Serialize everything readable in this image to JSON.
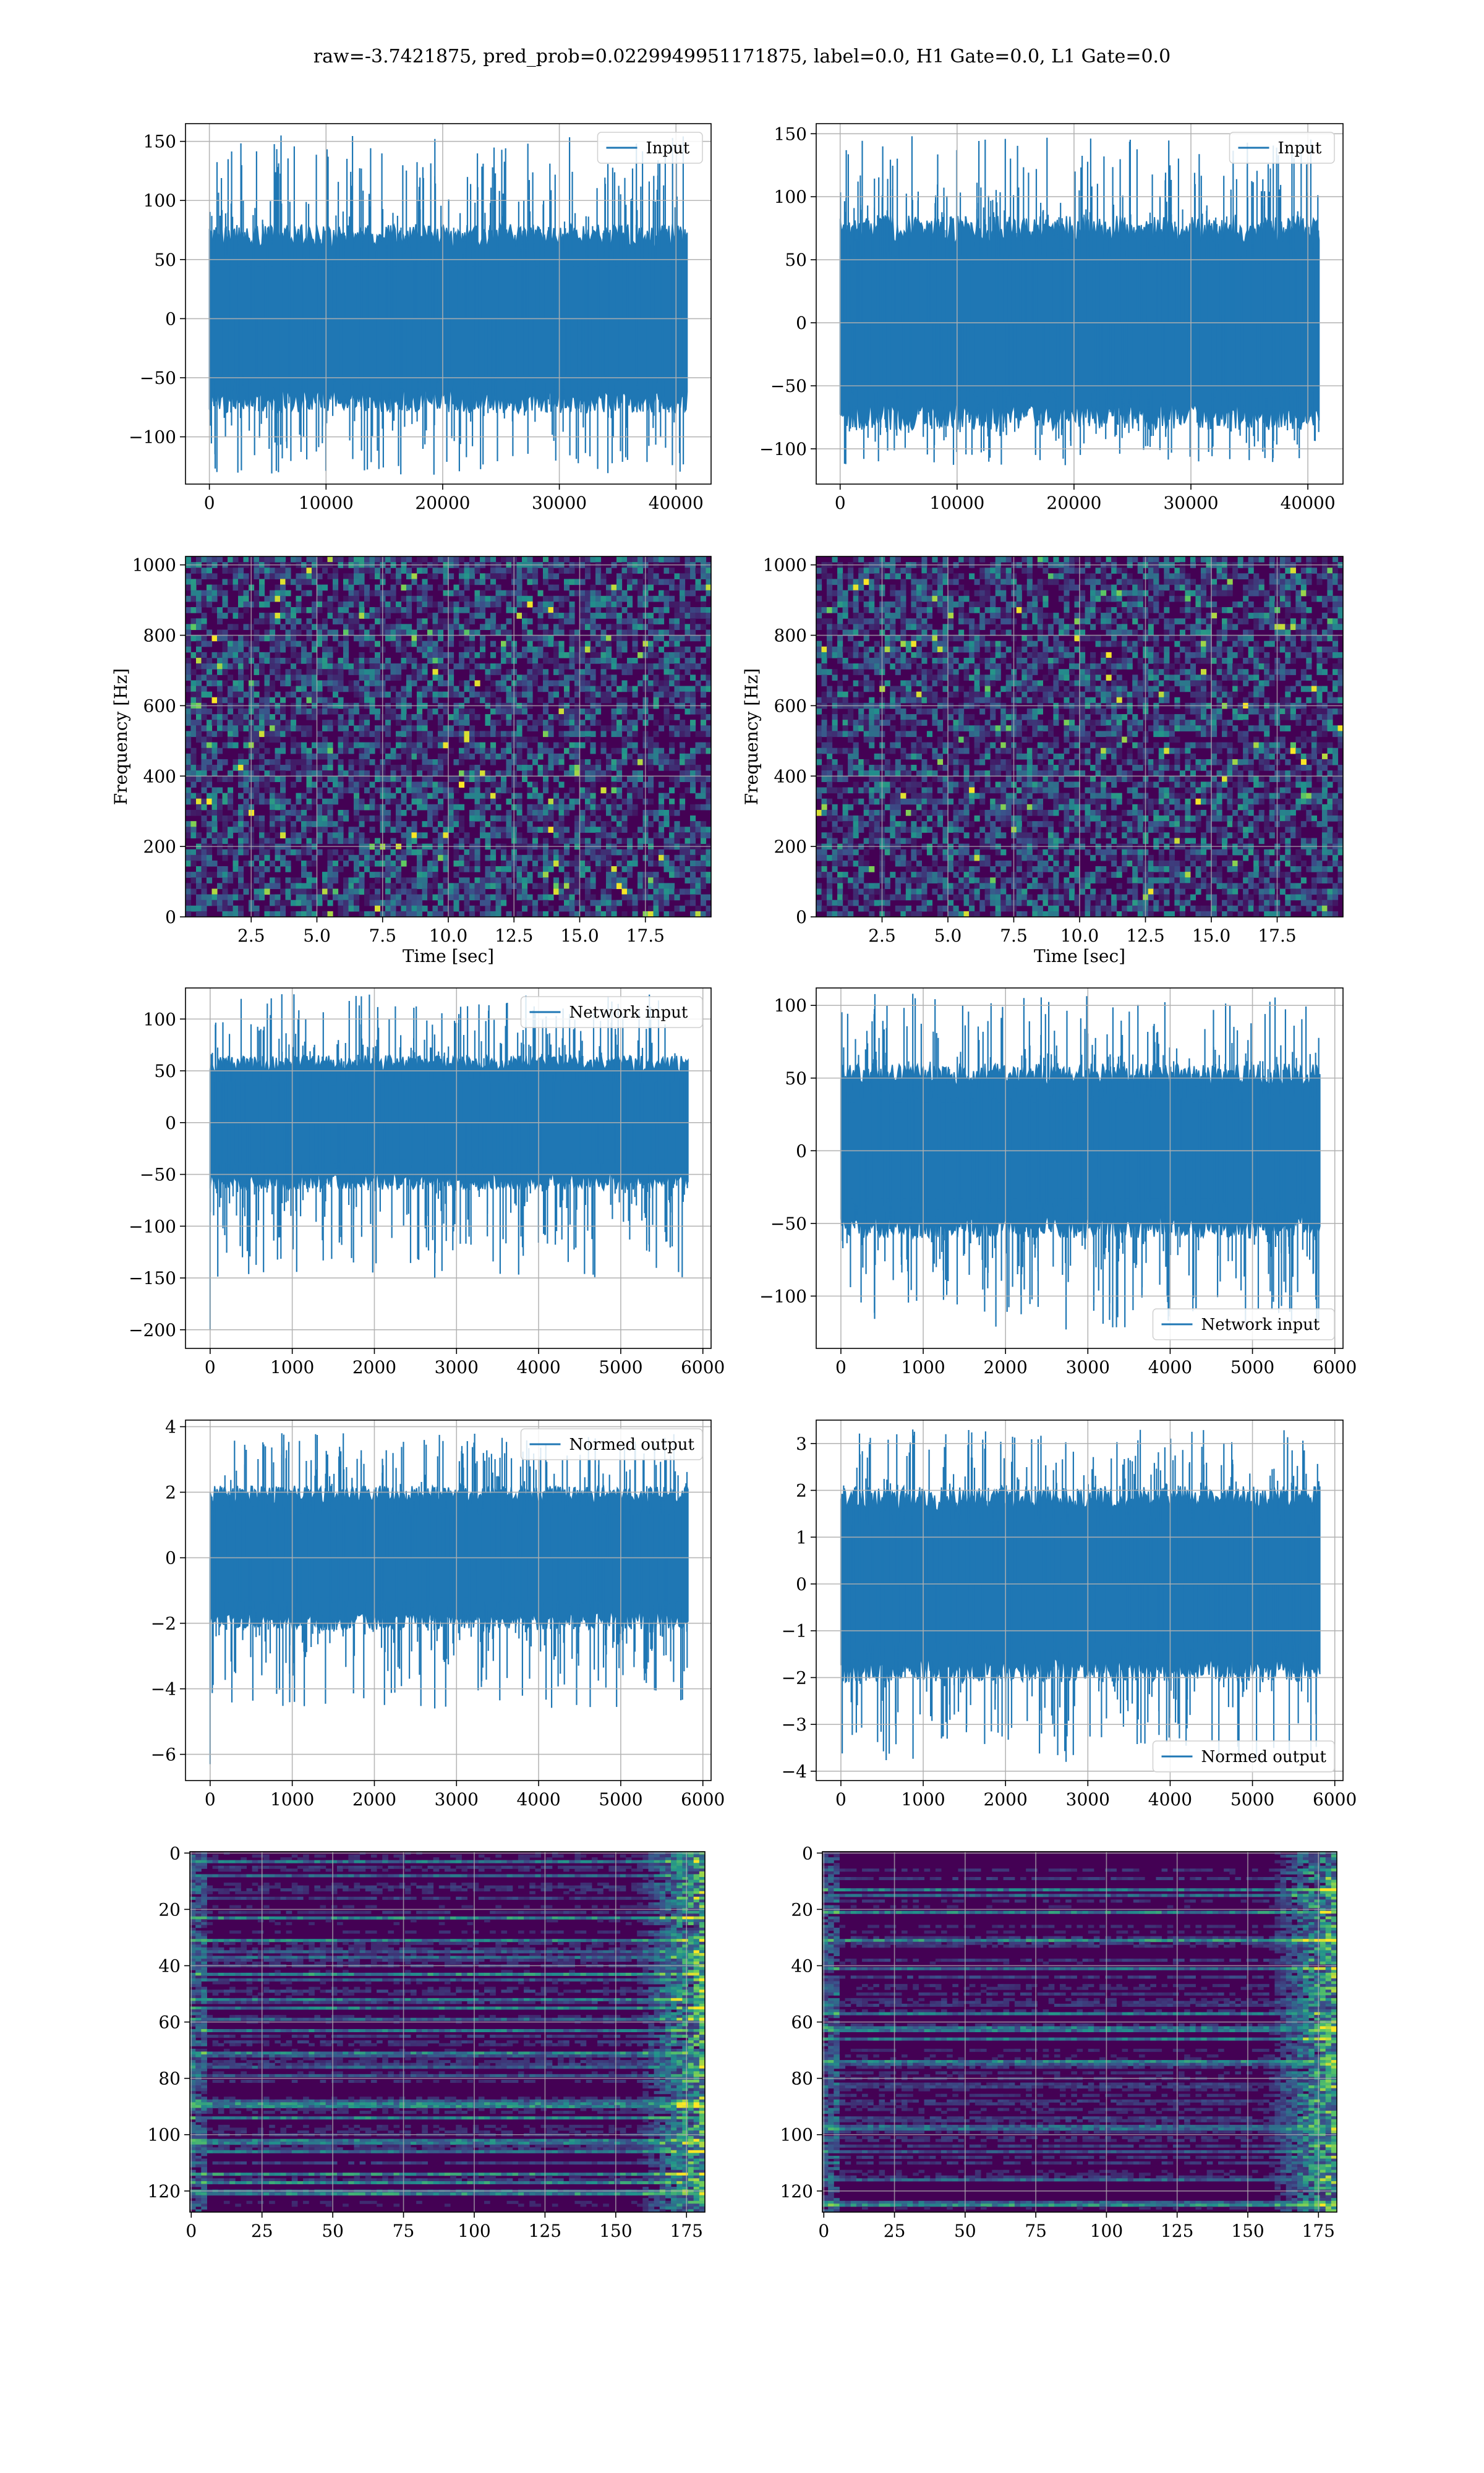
{
  "suptitle": "raw=-3.7421875, pred_prob=0.0229949951171875, label=0.0, H1 Gate=0.0, L1 Gate=0.0",
  "colors": {
    "line": "#1f77b4",
    "grid": "#b0b0b0",
    "viridis": [
      "#440154",
      "#3b528b",
      "#21918c",
      "#5ec962",
      "#fde725"
    ]
  },
  "chart_data": [
    {
      "id": "h1-input",
      "type": "line",
      "signal": "noise",
      "title": "",
      "xlabel": "",
      "ylabel": "",
      "series": [
        {
          "name": "Input",
          "color": "#1f77b4",
          "n_samples": 40960,
          "band_low": -80,
          "band_high": 80,
          "peak_max": 155,
          "peak_min": -132
        }
      ],
      "xlim": [
        -2048,
        43008
      ],
      "ylim": [
        -140,
        165
      ],
      "xticks": [
        0,
        10000,
        20000,
        30000,
        40000
      ],
      "xtick_labels": [
        "0",
        "10000",
        "20000",
        "30000",
        "40000"
      ],
      "yticks": [
        -100,
        -50,
        0,
        50,
        100,
        150
      ],
      "ytick_labels": [
        "−100",
        "−50",
        "0",
        "50",
        "100",
        "150"
      ],
      "legend": {
        "position": "upper right"
      },
      "grid": true
    },
    {
      "id": "l1-input",
      "type": "line",
      "signal": "noise",
      "title": "",
      "xlabel": "",
      "ylabel": "",
      "series": [
        {
          "name": "Input",
          "color": "#1f77b4",
          "n_samples": 40960,
          "band_low": -85,
          "band_high": 85,
          "peak_max": 148,
          "peak_min": -113
        }
      ],
      "xlim": [
        -2048,
        43008
      ],
      "ylim": [
        -128,
        158
      ],
      "xticks": [
        0,
        10000,
        20000,
        30000,
        40000
      ],
      "xtick_labels": [
        "0",
        "10000",
        "20000",
        "30000",
        "40000"
      ],
      "yticks": [
        -100,
        -50,
        0,
        50,
        100,
        150
      ],
      "ytick_labels": [
        "−100",
        "−50",
        "0",
        "50",
        "100",
        "150"
      ],
      "legend": {
        "position": "upper right"
      },
      "grid": true
    },
    {
      "id": "h1-spectrogram",
      "type": "heatmap",
      "style": "spectrogram",
      "title": "",
      "xlabel": "Time [sec]",
      "ylabel": "Frequency [Hz]",
      "xlim": [
        0,
        20
      ],
      "ylim": [
        0,
        1024
      ],
      "xticks": [
        2.5,
        5.0,
        7.5,
        10.0,
        12.5,
        15.0,
        17.5
      ],
      "xtick_labels": [
        "2.5",
        "5.0",
        "7.5",
        "10.0",
        "12.5",
        "15.0",
        "17.5"
      ],
      "yticks": [
        0,
        200,
        400,
        600,
        800,
        1000
      ],
      "ytick_labels": [
        "0",
        "200",
        "400",
        "600",
        "800",
        "1000"
      ],
      "grid": true,
      "colormap": "viridis"
    },
    {
      "id": "l1-spectrogram",
      "type": "heatmap",
      "style": "spectrogram",
      "title": "",
      "xlabel": "Time [sec]",
      "ylabel": "Frequency [Hz]",
      "xlim": [
        0,
        20
      ],
      "ylim": [
        0,
        1024
      ],
      "xticks": [
        2.5,
        5.0,
        7.5,
        10.0,
        12.5,
        15.0,
        17.5
      ],
      "xtick_labels": [
        "2.5",
        "5.0",
        "7.5",
        "10.0",
        "12.5",
        "15.0",
        "17.5"
      ],
      "yticks": [
        0,
        200,
        400,
        600,
        800,
        1000
      ],
      "ytick_labels": [
        "0",
        "200",
        "400",
        "600",
        "800",
        "1000"
      ],
      "grid": true,
      "colormap": "viridis"
    },
    {
      "id": "h1-network-input",
      "type": "line",
      "signal": "noise",
      "title": "",
      "xlabel": "",
      "ylabel": "",
      "series": [
        {
          "name": "Network input",
          "color": "#1f77b4",
          "n_samples": 5820,
          "band_low": -65,
          "band_high": 65,
          "peak_max": 124,
          "peak_min": -150,
          "first_sample": -200
        }
      ],
      "xlim": [
        -300,
        6100
      ],
      "ylim": [
        -218,
        130
      ],
      "xticks": [
        0,
        1000,
        2000,
        3000,
        4000,
        5000,
        6000
      ],
      "xtick_labels": [
        "0",
        "1000",
        "2000",
        "3000",
        "4000",
        "5000",
        "6000"
      ],
      "yticks": [
        -200,
        -150,
        -100,
        -50,
        0,
        50,
        100
      ],
      "ytick_labels": [
        "−200",
        "−150",
        "−100",
        "−50",
        "0",
        "50",
        "100"
      ],
      "legend": {
        "position": "upper right"
      },
      "grid": true
    },
    {
      "id": "l1-network-input",
      "type": "line",
      "signal": "noise",
      "title": "",
      "xlabel": "",
      "ylabel": "",
      "series": [
        {
          "name": "Network input",
          "color": "#1f77b4",
          "n_samples": 5820,
          "band_low": -60,
          "band_high": 60,
          "peak_max": 108,
          "peak_min": -123
        }
      ],
      "xlim": [
        -300,
        6100
      ],
      "ylim": [
        -136,
        112
      ],
      "xticks": [
        0,
        1000,
        2000,
        3000,
        4000,
        5000,
        6000
      ],
      "xtick_labels": [
        "0",
        "1000",
        "2000",
        "3000",
        "4000",
        "5000",
        "6000"
      ],
      "yticks": [
        -100,
        -50,
        0,
        50,
        100
      ],
      "ytick_labels": [
        "−100",
        "−50",
        "0",
        "50",
        "100"
      ],
      "legend": {
        "position": "lower right"
      },
      "grid": true
    },
    {
      "id": "h1-normed-output",
      "type": "line",
      "signal": "noise",
      "title": "",
      "xlabel": "",
      "ylabel": "",
      "series": [
        {
          "name": "Normed output",
          "color": "#1f77b4",
          "n_samples": 5820,
          "band_low": -2.2,
          "band_high": 2.2,
          "peak_max": 3.8,
          "peak_min": -4.6,
          "first_sample": -6.3
        }
      ],
      "xlim": [
        -300,
        6100
      ],
      "ylim": [
        -6.8,
        4.2
      ],
      "xticks": [
        0,
        1000,
        2000,
        3000,
        4000,
        5000,
        6000
      ],
      "xtick_labels": [
        "0",
        "1000",
        "2000",
        "3000",
        "4000",
        "5000",
        "6000"
      ],
      "yticks": [
        -6,
        -4,
        -2,
        0,
        2,
        4
      ],
      "ytick_labels": [
        "−6",
        "−4",
        "−2",
        "0",
        "2",
        "4"
      ],
      "legend": {
        "position": "upper right"
      },
      "grid": true
    },
    {
      "id": "l1-normed-output",
      "type": "line",
      "signal": "noise",
      "title": "",
      "xlabel": "",
      "ylabel": "",
      "series": [
        {
          "name": "Normed output",
          "color": "#1f77b4",
          "n_samples": 5820,
          "band_low": -2.1,
          "band_high": 2.1,
          "peak_max": 3.3,
          "peak_min": -3.8
        }
      ],
      "xlim": [
        -300,
        6100
      ],
      "ylim": [
        -4.2,
        3.5
      ],
      "xticks": [
        0,
        1000,
        2000,
        3000,
        4000,
        5000,
        6000
      ],
      "xtick_labels": [
        "0",
        "1000",
        "2000",
        "3000",
        "4000",
        "5000",
        "6000"
      ],
      "yticks": [
        -4,
        -3,
        -2,
        -1,
        0,
        1,
        2,
        3
      ],
      "ytick_labels": [
        "−4",
        "−3",
        "−2",
        "−1",
        "0",
        "1",
        "2",
        "3"
      ],
      "legend": {
        "position": "lower right"
      },
      "grid": true
    },
    {
      "id": "h1-feature-map",
      "type": "heatmap",
      "style": "featuremap",
      "seed": 11,
      "title": "",
      "xlabel": "",
      "ylabel": "",
      "rows": 128,
      "cols": 182,
      "y_inverted": true,
      "xlim": [
        -0.5,
        181.5
      ],
      "ylim": [
        127.5,
        -0.5
      ],
      "xticks": [
        0,
        25,
        50,
        75,
        100,
        125,
        150,
        175
      ],
      "xtick_labels": [
        "0",
        "25",
        "50",
        "75",
        "100",
        "125",
        "150",
        "175"
      ],
      "yticks": [
        0,
        20,
        40,
        60,
        80,
        100,
        120
      ],
      "ytick_labels": [
        "0",
        "20",
        "40",
        "60",
        "80",
        "100",
        "120"
      ],
      "grid": true,
      "colormap": "viridis"
    },
    {
      "id": "l1-feature-map",
      "type": "heatmap",
      "style": "featuremap",
      "seed": 29,
      "title": "",
      "xlabel": "",
      "ylabel": "",
      "rows": 128,
      "cols": 182,
      "y_inverted": true,
      "xlim": [
        -0.5,
        181.5
      ],
      "ylim": [
        127.5,
        -0.5
      ],
      "xticks": [
        0,
        25,
        50,
        75,
        100,
        125,
        150,
        175
      ],
      "xtick_labels": [
        "0",
        "25",
        "50",
        "75",
        "100",
        "125",
        "150",
        "175"
      ],
      "yticks": [
        0,
        20,
        40,
        60,
        80,
        100,
        120
      ],
      "ytick_labels": [
        "0",
        "20",
        "40",
        "60",
        "80",
        "100",
        "120"
      ],
      "grid": true,
      "colormap": "viridis"
    }
  ]
}
